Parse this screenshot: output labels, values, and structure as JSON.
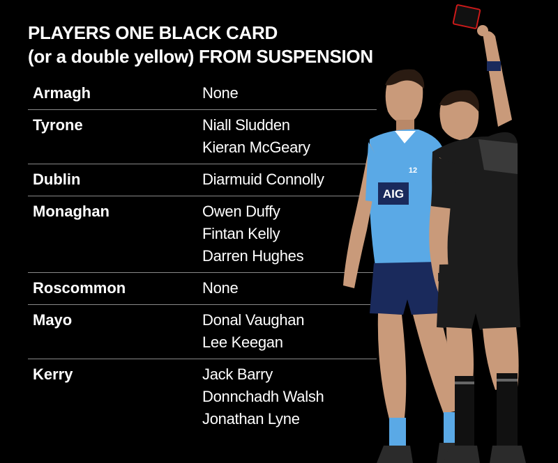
{
  "title": {
    "line1": "PLAYERS ONE BLACK CARD",
    "line2": "(or a double yellow) FROM SUSPENSION"
  },
  "rows": [
    {
      "county": "Armagh",
      "players": [
        "None"
      ]
    },
    {
      "county": "Tyrone",
      "players": [
        "Niall Sludden",
        "Kieran McGeary"
      ]
    },
    {
      "county": "Dublin",
      "players": [
        "Diarmuid Connolly"
      ]
    },
    {
      "county": "Monaghan",
      "players": [
        "Owen Duffy",
        "Fintan Kelly",
        "Darren Hughes"
      ]
    },
    {
      "county": "Roscommon",
      "players": [
        "None"
      ]
    },
    {
      "county": "Mayo",
      "players": [
        "Donal Vaughan",
        "Lee Keegan"
      ]
    },
    {
      "county": "Kerry",
      "players": [
        "Jack Barry",
        "Donnchadh Walsh",
        "Jonathan Lyne"
      ]
    }
  ],
  "photo": {
    "jersey_text": "AIG",
    "jersey_number": "12"
  },
  "colors": {
    "background": "#000000",
    "divider": "#8a8a8a",
    "jersey_blue": "#5aa9e6",
    "shorts_navy": "#1a2a5c",
    "referee_black": "#1c1c1c",
    "card_red": "#cc1a1a"
  }
}
